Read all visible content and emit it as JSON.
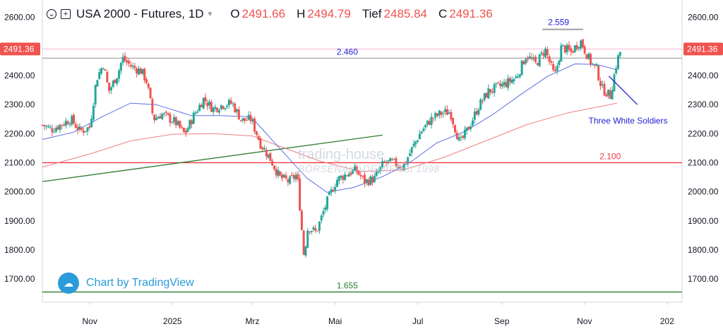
{
  "header": {
    "settings_icon": "circle-chevron-icon",
    "compare_icon": "plus-square-icon",
    "title": "USA 2000 - Futures, 1D",
    "caret_icon": "triangle-down-icon",
    "ohlc": [
      {
        "label": "O",
        "value": "2491.66"
      },
      {
        "label": "H",
        "value": "2494.79"
      },
      {
        "label": "Tief",
        "value": "2485.84"
      },
      {
        "label": "C",
        "value": "2491.36"
      }
    ]
  },
  "watermark": {
    "line1": "trading-house",
    "line2": "BÖRSENAKADEMIE est 1998"
  },
  "branding": {
    "text": "Chart by TradingView",
    "icon": "tradingview-cloud-icon"
  },
  "colors": {
    "up": "#26a69a",
    "down": "#ef5350",
    "ma_fast": "#5b6ee1",
    "ma_slow": "#f08080",
    "support_red": "#f23645",
    "support_green": "#2e7d32",
    "price_line": "#9e9e9e",
    "annotation_blue": "#1f1fd6",
    "price_label_bg": "#ef5350"
  },
  "chart_data": {
    "type": "candlestick",
    "title": "USA 2000 - Futures, 1D",
    "current_price": 2491.36,
    "current_price_label": "2491.36",
    "ylim": [
      1620,
      2660
    ],
    "y_ticks": [
      "2600.00",
      "2500.00",
      "2400.00",
      "2300.00",
      "2200.00",
      "2100.00",
      "2000.00",
      "1900.00",
      "1800.00",
      "1700.00"
    ],
    "x_ticks": [
      "Nov",
      "2025",
      "Mrz",
      "Mai",
      "Jul",
      "Sep",
      "Nov",
      "202"
    ],
    "xlim": [
      "2024-09-27",
      "2026-01-12"
    ],
    "x_tick_dates": [
      "2024-11-01",
      "2025-01-01",
      "2025-03-01",
      "2025-05-01",
      "2025-07-01",
      "2025-09-01",
      "2025-11-01",
      "2026-01-01"
    ],
    "levels": [
      {
        "value": 2460,
        "label": "2.460",
        "color": "price_line",
        "label_color": "annotation_blue",
        "label_date": "2025-05-10"
      },
      {
        "value": 2100,
        "label": "2.100",
        "color": "support_red",
        "label_color": "support_red",
        "label_date": "2025-11-20"
      },
      {
        "value": 1655,
        "label": "1.655",
        "color": "support_green",
        "label_color": "support_green",
        "label_date": "2025-05-10"
      }
    ],
    "high_marker": {
      "value": 2559,
      "label": "2.559",
      "start_date": "2025-10-01",
      "end_date": "2025-10-31"
    },
    "trendline": {
      "start": {
        "date": "2024-09-27",
        "value": 2035
      },
      "end": {
        "date": "2025-06-05",
        "value": 2195
      }
    },
    "annotation": {
      "text": "Three White Soldiers",
      "arrow_from": {
        "date": "2025-11-19",
        "value": 2398
      },
      "arrow_to": {
        "date": "2025-12-10",
        "value": 2300
      },
      "text_date": "2025-11-04",
      "text_value": 2235
    },
    "ma_fast": [
      [
        "2024-09-27",
        2180
      ],
      [
        "2024-10-20",
        2205
      ],
      [
        "2024-11-10",
        2258
      ],
      [
        "2024-12-01",
        2305
      ],
      [
        "2024-12-20",
        2300
      ],
      [
        "2025-01-15",
        2262
      ],
      [
        "2025-02-05",
        2262
      ],
      [
        "2025-02-28",
        2258
      ],
      [
        "2025-03-20",
        2155
      ],
      [
        "2025-04-10",
        2048
      ],
      [
        "2025-04-25",
        1998
      ],
      [
        "2025-05-15",
        2015
      ],
      [
        "2025-06-05",
        2052
      ],
      [
        "2025-06-25",
        2100
      ],
      [
        "2025-07-15",
        2168
      ],
      [
        "2025-08-05",
        2208
      ],
      [
        "2025-08-25",
        2265
      ],
      [
        "2025-09-15",
        2335
      ],
      [
        "2025-10-05",
        2398
      ],
      [
        "2025-10-25",
        2440
      ],
      [
        "2025-11-10",
        2438
      ],
      [
        "2025-11-25",
        2420
      ]
    ],
    "ma_slow": [
      [
        "2024-09-27",
        2085
      ],
      [
        "2024-11-01",
        2130
      ],
      [
        "2024-12-01",
        2175
      ],
      [
        "2025-01-01",
        2198
      ],
      [
        "2025-02-01",
        2200
      ],
      [
        "2025-03-01",
        2192
      ],
      [
        "2025-03-25",
        2150
      ],
      [
        "2025-04-20",
        2105
      ],
      [
        "2025-05-20",
        2070
      ],
      [
        "2025-06-20",
        2075
      ],
      [
        "2025-07-20",
        2118
      ],
      [
        "2025-08-20",
        2175
      ],
      [
        "2025-09-20",
        2232
      ],
      [
        "2025-10-20",
        2272
      ],
      [
        "2025-11-25",
        2305
      ]
    ],
    "candles_close": [
      [
        "2024-09-27",
        2230
      ],
      [
        "2024-10-04",
        2215
      ],
      [
        "2024-10-11",
        2232
      ],
      [
        "2024-10-18",
        2250
      ],
      [
        "2024-10-25",
        2208
      ],
      [
        "2024-11-01",
        2222
      ],
      [
        "2024-11-06",
        2390
      ],
      [
        "2024-11-11",
        2440
      ],
      [
        "2024-11-15",
        2345
      ],
      [
        "2024-11-22",
        2410
      ],
      [
        "2024-11-25",
        2460
      ],
      [
        "2024-12-02",
        2430
      ],
      [
        "2024-12-09",
        2415
      ],
      [
        "2024-12-13",
        2380
      ],
      [
        "2024-12-18",
        2250
      ],
      [
        "2024-12-24",
        2268
      ],
      [
        "2025-01-03",
        2240
      ],
      [
        "2025-01-10",
        2198
      ],
      [
        "2025-01-17",
        2265
      ],
      [
        "2025-01-24",
        2320
      ],
      [
        "2025-01-31",
        2285
      ],
      [
        "2025-02-07",
        2300
      ],
      [
        "2025-02-14",
        2305
      ],
      [
        "2025-02-21",
        2245
      ],
      [
        "2025-02-28",
        2250
      ],
      [
        "2025-03-07",
        2165
      ],
      [
        "2025-03-14",
        2115
      ],
      [
        "2025-03-21",
        2050
      ],
      [
        "2025-03-28",
        2035
      ],
      [
        "2025-04-03",
        2060
      ],
      [
        "2025-04-08",
        1780
      ],
      [
        "2025-04-11",
        1880
      ],
      [
        "2025-04-17",
        1860
      ],
      [
        "2025-04-25",
        1965
      ],
      [
        "2025-05-02",
        2040
      ],
      [
        "2025-05-09",
        2060
      ],
      [
        "2025-05-16",
        2075
      ],
      [
        "2025-05-23",
        2035
      ],
      [
        "2025-05-30",
        2045
      ],
      [
        "2025-06-06",
        2100
      ],
      [
        "2025-06-13",
        2100
      ],
      [
        "2025-06-20",
        2085
      ],
      [
        "2025-06-27",
        2150
      ],
      [
        "2025-07-03",
        2205
      ],
      [
        "2025-07-11",
        2250
      ],
      [
        "2025-07-18",
        2270
      ],
      [
        "2025-07-25",
        2275
      ],
      [
        "2025-08-01",
        2165
      ],
      [
        "2025-08-08",
        2225
      ],
      [
        "2025-08-15",
        2295
      ],
      [
        "2025-08-22",
        2345
      ],
      [
        "2025-08-29",
        2360
      ],
      [
        "2025-09-05",
        2375
      ],
      [
        "2025-09-12",
        2395
      ],
      [
        "2025-09-19",
        2470
      ],
      [
        "2025-09-26",
        2440
      ],
      [
        "2025-10-03",
        2490
      ],
      [
        "2025-10-10",
        2395
      ],
      [
        "2025-10-15",
        2500
      ],
      [
        "2025-10-22",
        2480
      ],
      [
        "2025-10-29",
        2520
      ],
      [
        "2025-11-05",
        2450
      ],
      [
        "2025-11-10",
        2420
      ],
      [
        "2025-11-14",
        2355
      ],
      [
        "2025-11-20",
        2330
      ],
      [
        "2025-11-25",
        2450
      ],
      [
        "2025-11-28",
        2491
      ]
    ]
  }
}
